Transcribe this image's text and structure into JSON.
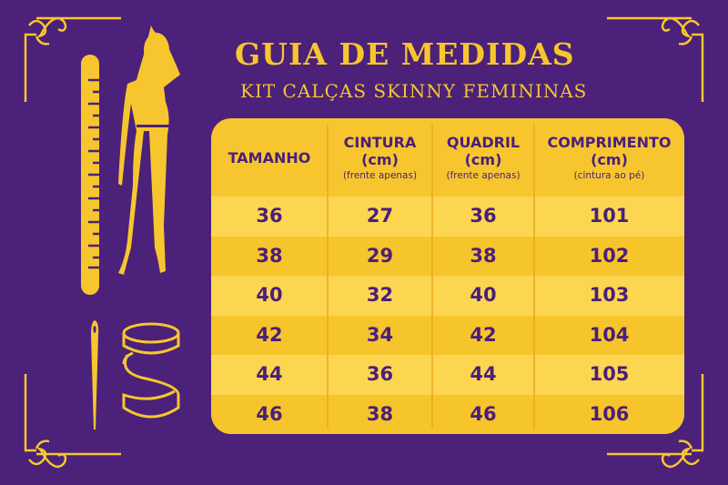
{
  "header": {
    "title": "GUIA DE MEDIDAS",
    "subtitle": "KIT CALÇAS SKINNY FEMININAS"
  },
  "colors": {
    "background": "#4b2179",
    "accent": "#f7c62f",
    "row_light": "#fcd650",
    "row_dark": "#f6c42b",
    "text": "#4b1f7a"
  },
  "icons": [
    "corner-ornament-icon",
    "ruler-icon",
    "woman-silhouette-icon",
    "needle-icon",
    "measuring-tape-icon"
  ],
  "table": {
    "columns": [
      {
        "label": "TAMANHO",
        "unit": "",
        "note": ""
      },
      {
        "label": "CINTURA",
        "unit": "(cm)",
        "note": "(frente apenas)"
      },
      {
        "label": "QUADRIL",
        "unit": "(cm)",
        "note": "(frente apenas)"
      },
      {
        "label": "COMPRIMENTO",
        "unit": "(cm)",
        "note": "(cintura ao pé)"
      }
    ],
    "rows": [
      [
        "36",
        "27",
        "36",
        "101"
      ],
      [
        "38",
        "29",
        "38",
        "102"
      ],
      [
        "40",
        "32",
        "40",
        "103"
      ],
      [
        "42",
        "34",
        "42",
        "104"
      ],
      [
        "44",
        "36",
        "44",
        "105"
      ],
      [
        "46",
        "38",
        "46",
        "106"
      ]
    ]
  }
}
